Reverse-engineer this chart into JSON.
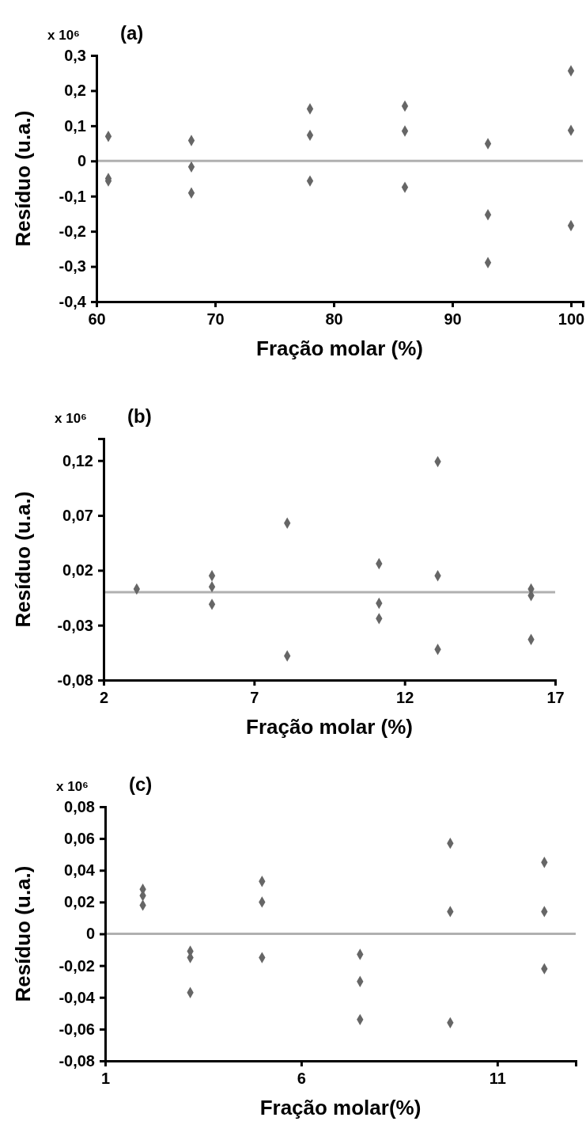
{
  "chart_data": [
    {
      "type": "scatter",
      "title": "(a)",
      "xlabel": "Fração molar (%)",
      "ylabel": "Resíduo (u.a.)",
      "annotations": [
        "x 10⁶"
      ],
      "marker": "diamond",
      "grid": false,
      "xlim": [
        60,
        101
      ],
      "xticks": [
        60,
        70,
        80,
        90,
        100
      ],
      "ylim": [
        -0.4,
        0.3
      ],
      "yticks": [
        {
          "value": -0.4,
          "label": "-0,4"
        },
        {
          "value": -0.3,
          "label": "-0,3"
        },
        {
          "value": -0.2,
          "label": "-0,2"
        },
        {
          "value": -0.1,
          "label": "-0,1"
        },
        0,
        {
          "value": 0.1,
          "label": "0,1"
        },
        {
          "value": 0.2,
          "label": "0,2"
        },
        {
          "value": 0.3,
          "label": "0,3"
        }
      ],
      "ref_lines": [
        {
          "axis": "y",
          "value": 0,
          "color": "#b0b0b0"
        }
      ],
      "series": [
        {
          "color": "#666666",
          "x": [
            61,
            61,
            61,
            68,
            68,
            68,
            78,
            78,
            78,
            86,
            86,
            86,
            93,
            93,
            93,
            100,
            100,
            100
          ],
          "values": [
            0.07,
            -0.05,
            -0.057,
            0.058,
            -0.017,
            -0.091,
            0.148,
            0.073,
            -0.057,
            0.156,
            0.085,
            -0.075,
            0.049,
            -0.153,
            -0.289,
            0.256,
            0.087,
            -0.184
          ]
        }
      ]
    },
    {
      "type": "scatter",
      "title": "(b)",
      "xlabel": "Fração molar (%)",
      "ylabel": "Resíduo (u.a.)",
      "annotations": [
        "x 10⁶"
      ],
      "marker": "diamond",
      "grid": false,
      "xlim": [
        2,
        17
      ],
      "xticks": [
        2,
        7,
        12,
        17
      ],
      "ylim": [
        -0.08,
        0.14
      ],
      "yticks": [
        {
          "value": -0.08,
          "label": "-0,08"
        },
        {
          "value": -0.03,
          "label": "-0,03"
        },
        {
          "value": 0.02,
          "label": "0,02"
        },
        {
          "value": 0.07,
          "label": "0,07"
        },
        {
          "value": 0.12,
          "label": "0,12"
        }
      ],
      "ref_lines": [
        {
          "axis": "y",
          "value": 0,
          "color": "#b0b0b0"
        }
      ],
      "series": [
        {
          "color": "#666666",
          "x": [
            3.1,
            5.6,
            5.6,
            5.6,
            8.1,
            8.1,
            11.15,
            11.15,
            11.15,
            13.1,
            13.1,
            13.1,
            16.2,
            16.2,
            16.2
          ],
          "values": [
            0.003,
            0.015,
            0.005,
            -0.011,
            0.063,
            -0.058,
            0.026,
            -0.01,
            -0.024,
            0.119,
            0.015,
            -0.052,
            0.003,
            -0.003,
            -0.043
          ]
        }
      ]
    },
    {
      "type": "scatter",
      "title": "(c)",
      "xlabel": "Fração molar(%)",
      "ylabel": "Resíduo (u.a.)",
      "annotations": [
        "x 10⁶"
      ],
      "marker": "diamond",
      "grid": false,
      "xlim": [
        1,
        13
      ],
      "xticks": [
        1,
        6,
        11
      ],
      "ylim": [
        -0.08,
        0.08
      ],
      "yticks": [
        {
          "value": -0.08,
          "label": "-0,08"
        },
        {
          "value": -0.06,
          "label": "-0,06"
        },
        {
          "value": -0.04,
          "label": "-0,04"
        },
        {
          "value": -0.02,
          "label": "-0,02"
        },
        0,
        {
          "value": 0.02,
          "label": "0,02"
        },
        {
          "value": 0.04,
          "label": "0,04"
        },
        {
          "value": 0.06,
          "label": "0,06"
        },
        {
          "value": 0.08,
          "label": "0,08"
        }
      ],
      "ref_lines": [
        {
          "axis": "y",
          "value": 0,
          "color": "#b0b0b0"
        }
      ],
      "series": [
        {
          "color": "#666666",
          "x": [
            1.96,
            1.96,
            1.96,
            3.17,
            3.17,
            3.17,
            5,
            5,
            5,
            7.5,
            7.5,
            7.5,
            9.8,
            9.8,
            9.8,
            12.2,
            12.2,
            12.2
          ],
          "values": [
            0.028,
            0.024,
            0.018,
            -0.011,
            -0.015,
            -0.037,
            0.033,
            0.02,
            -0.015,
            -0.013,
            -0.03,
            -0.054,
            0.057,
            0.014,
            -0.056,
            0.045,
            0.014,
            -0.022
          ]
        }
      ]
    }
  ]
}
